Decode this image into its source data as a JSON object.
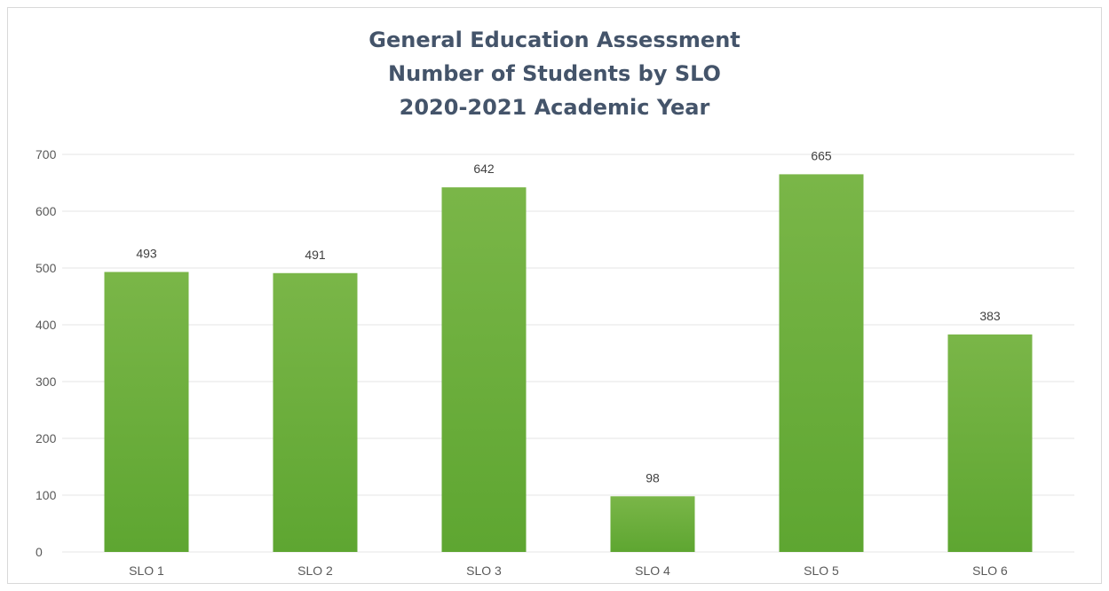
{
  "chart_data": {
    "type": "bar",
    "title_lines": [
      "General Education Assessment",
      "Number of Students by SLO",
      "2020-2021 Academic Year"
    ],
    "categories": [
      "SLO 1",
      "SLO 2",
      "SLO 3",
      "SLO 4",
      "SLO 5",
      "SLO 6"
    ],
    "values": [
      493,
      491,
      642,
      98,
      665,
      383
    ],
    "data_labels": [
      "493",
      "491",
      "642",
      "98",
      "665",
      "383"
    ],
    "y_ticks": [
      "0",
      "100",
      "200",
      "300",
      "400",
      "500",
      "600",
      "700"
    ],
    "ylim": [
      0,
      700
    ],
    "xlabel": "",
    "ylabel": "",
    "grid": true,
    "legend": "none",
    "colors": {
      "bar_light": "#7ab648",
      "bar_dark": "#5ea631",
      "gridline": "#e6e6e6",
      "title": "#44546a"
    }
  }
}
